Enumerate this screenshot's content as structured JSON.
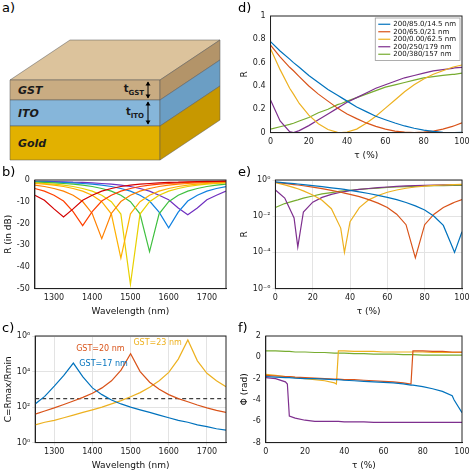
{
  "schematic": {
    "panel": "a)",
    "layers": [
      {
        "label": "GST",
        "thickness": {
          "symbol": "t",
          "subscript": "GST"
        }
      },
      {
        "label": "ITO",
        "thickness": {
          "symbol": "t",
          "subscript": "ITO"
        }
      },
      {
        "label": "Gold"
      }
    ]
  },
  "chart_data": [
    {
      "panel": "b)",
      "type": "line",
      "x_label": "Wavelength (nm)",
      "y_label": "R (in dB)",
      "x": [
        1250,
        1275,
        1300,
        1325,
        1350,
        1375,
        1400,
        1425,
        1450,
        1475,
        1500,
        1525,
        1550,
        1575,
        1600,
        1625,
        1650,
        1675,
        1700,
        1725,
        1750
      ],
      "xlim": [
        1250,
        1750
      ],
      "xticks": [
        1300,
        1400,
        1500,
        1600,
        1700
      ],
      "ylim": [
        -50,
        0
      ],
      "yticks": [
        -50,
        -40,
        -30,
        -20,
        -10,
        0
      ],
      "series": [
        {
          "color": "#d40000",
          "values": [
            -7.0,
            -9.3,
            -13.3,
            -17,
            -13.3,
            -9.3,
            -7.0,
            -5.1,
            -3.9,
            -3.0,
            -2.4,
            -1.9,
            -1.6,
            -1.3,
            -1.1,
            -1.0,
            -0.8,
            -0.7,
            -0.6,
            -0.6,
            -0.5
          ]
        },
        {
          "color": "#ff4000",
          "values": [
            -3.9,
            -5.1,
            -7.0,
            -9.7,
            -14.6,
            -21,
            -14.6,
            -9.7,
            -7.0,
            -5.1,
            -3.9,
            -3.0,
            -2.4,
            -1.9,
            -1.6,
            -1.3,
            -1.1,
            -1.0,
            -0.8,
            -0.7,
            -0.6
          ]
        },
        {
          "color": "#ff8000",
          "values": [
            -2.4,
            -3.0,
            -3.9,
            -5.1,
            -7.0,
            -9.9,
            -15.4,
            -27,
            -15.4,
            -9.9,
            -7.0,
            -5.1,
            -3.9,
            -3.0,
            -2.4,
            -1.9,
            -1.6,
            -1.3,
            -1.1,
            -1.0,
            -0.8
          ]
        },
        {
          "color": "#ffb000",
          "values": [
            -1.6,
            -1.9,
            -2.4,
            -3.0,
            -3.9,
            -5.1,
            -7.0,
            -10.0,
            -15.6,
            -36,
            -15.6,
            -10.0,
            -7.0,
            -5.1,
            -3.9,
            -3.0,
            -2.4,
            -1.9,
            -1.6,
            -1.3,
            -1.1
          ]
        },
        {
          "color": "#e8d000",
          "values": [
            -1.3,
            -1.6,
            -1.9,
            -2.4,
            -3.0,
            -3.9,
            -5.1,
            -7.0,
            -10.0,
            -15.7,
            -48,
            -15.7,
            -10.0,
            -7.0,
            -5.1,
            -3.9,
            -3.0,
            -2.4,
            -1.9,
            -1.6,
            -1.3
          ]
        },
        {
          "color": "#40c040",
          "values": [
            -1.0,
            -1.1,
            -1.3,
            -1.6,
            -1.9,
            -2.4,
            -3.0,
            -3.9,
            -5.1,
            -7.0,
            -10.0,
            -15.6,
            -33,
            -15.6,
            -10.0,
            -7.0,
            -5.1,
            -3.9,
            -3.0,
            -2.4,
            -1.9
          ]
        },
        {
          "color": "#1080e0",
          "values": [
            -0.7,
            -0.8,
            -1.0,
            -1.1,
            -1.3,
            -1.6,
            -1.9,
            -2.4,
            -3.0,
            -3.9,
            -5.1,
            -7.0,
            -9.7,
            -14.8,
            -22,
            -14.8,
            -9.7,
            -7.0,
            -5.1,
            -3.9,
            -3.0
          ]
        },
        {
          "color": "#7030c0",
          "values": [
            -0.6,
            -0.6,
            -0.7,
            -0.8,
            -1.0,
            -1.1,
            -1.3,
            -1.6,
            -1.9,
            -2.4,
            -3.0,
            -3.9,
            -5.1,
            -7.0,
            -9.1,
            -12.9,
            -16,
            -12.9,
            -9.1,
            -7.0,
            -5.1
          ]
        }
      ]
    },
    {
      "panel": "c)",
      "type": "line",
      "x_label": "Wavelength (nm)",
      "y_label": "C=Rmax/Rmin",
      "log": "y",
      "grid": true,
      "x": [
        1250,
        1275,
        1300,
        1325,
        1350,
        1375,
        1400,
        1425,
        1450,
        1475,
        1500,
        1525,
        1550,
        1575,
        1600,
        1625,
        1650,
        1675,
        1700,
        1725,
        1750
      ],
      "xlim": [
        1250,
        1750
      ],
      "xticks": [
        1300,
        1400,
        1500,
        1600,
        1700
      ],
      "ylim": [
        1,
        1000000
      ],
      "yticks": [
        {
          "value": 1,
          "label": "10⁰"
        },
        {
          "value": 100,
          "label": "10²"
        },
        {
          "value": 10000,
          "label": "10⁴"
        },
        {
          "value": 1000000,
          "label": "10⁶"
        }
      ],
      "series": [
        {
          "name": "GST=17 nm",
          "color": "#0072bd",
          "values": [
            150,
            400,
            1500,
            6000,
            30000,
            5000,
            1200,
            500,
            250,
            150,
            100,
            70,
            50,
            35,
            25,
            18,
            14,
            10,
            8,
            6,
            5
          ]
        },
        {
          "name": "GST=20 nm",
          "color": "#d95319",
          "values": [
            40,
            60,
            90,
            140,
            220,
            350,
            600,
            1200,
            3000,
            12000,
            100000,
            10000,
            2500,
            1000,
            500,
            300,
            200,
            130,
            90,
            65,
            50
          ]
        },
        {
          "name": "GST=23 nm",
          "color": "#edb120",
          "values": [
            10,
            14,
            18,
            25,
            35,
            50,
            70,
            100,
            150,
            230,
            380,
            650,
            1300,
            3000,
            9000,
            50000,
            600000,
            40000,
            8000,
            3000,
            1400
          ]
        },
        {
          "color": "#404040",
          "line_style": "dashed",
          "values": [
            300,
            300,
            300,
            300,
            300,
            300,
            300,
            300,
            300,
            300,
            300,
            300,
            300,
            300,
            300,
            300,
            300,
            300,
            300,
            300,
            300
          ]
        }
      ]
    },
    {
      "panel": "d)",
      "type": "line",
      "x_label": "τ (%)",
      "y_label": "R",
      "legend": "upper right",
      "x": [
        0,
        5,
        10,
        12,
        15,
        20,
        25,
        30,
        35,
        37,
        40,
        45,
        50,
        55,
        60,
        65,
        70,
        75,
        80,
        85,
        90,
        95,
        96,
        100
      ],
      "xlim": [
        0,
        100
      ],
      "xticks": [
        0,
        20,
        40,
        60,
        80,
        100
      ],
      "ylim": [
        0,
        1
      ],
      "yticks": [
        0,
        0.2,
        0.4,
        0.6,
        0.8,
        1
      ],
      "series": [
        {
          "name": "200/85.0/14.5 nm",
          "color": "#0072bd",
          "values": [
            0.78,
            0.7,
            0.63,
            0.6,
            0.56,
            0.49,
            0.43,
            0.37,
            0.32,
            0.3,
            0.27,
            0.22,
            0.18,
            0.14,
            0.11,
            0.082,
            0.057,
            0.037,
            0.022,
            0.01,
            0.0031,
            0.00018,
            0.0001,
            0.0014
          ]
        },
        {
          "name": "200/65.0/21 nm",
          "color": "#d95319",
          "values": [
            0.75,
            0.65,
            0.56,
            0.53,
            0.48,
            0.4,
            0.33,
            0.27,
            0.21,
            0.19,
            0.16,
            0.12,
            0.083,
            0.053,
            0.03,
            0.013,
            0.0034,
            5e-05,
            0.0034,
            0.013,
            0.03,
            0.053,
            0.059,
            0.083
          ]
        },
        {
          "name": "200/0.00/62.5 nm",
          "color": "#edb120",
          "values": [
            0.72,
            0.54,
            0.38,
            0.33,
            0.25,
            0.15,
            0.076,
            0.026,
            0.0022,
            0.0001,
            0.005,
            0.03,
            0.08,
            0.14,
            0.21,
            0.28,
            0.35,
            0.41,
            0.46,
            0.5,
            0.53,
            0.56,
            0.565,
            0.58
          ]
        },
        {
          "name": "200/250/179 nm",
          "color": "#7e2f8e",
          "values": [
            0.28,
            0.1,
            0.008,
            0.0002,
            0.017,
            0.06,
            0.11,
            0.16,
            0.21,
            0.23,
            0.26,
            0.3,
            0.34,
            0.38,
            0.41,
            0.44,
            0.47,
            0.49,
            0.51,
            0.53,
            0.54,
            0.55,
            0.555,
            0.56
          ]
        },
        {
          "name": "200/380/157 nm",
          "color": "#77ac30",
          "values": [
            0.03,
            0.05,
            0.07,
            0.08,
            0.1,
            0.13,
            0.17,
            0.2,
            0.24,
            0.25,
            0.27,
            0.3,
            0.33,
            0.36,
            0.39,
            0.41,
            0.43,
            0.45,
            0.47,
            0.48,
            0.49,
            0.5,
            0.5,
            0.51
          ]
        }
      ]
    },
    {
      "panel": "e)",
      "type": "line",
      "x_label": "τ (%)",
      "y_label": "R",
      "log": "y",
      "grid": true,
      "x": [
        0,
        5,
        10,
        12,
        15,
        20,
        25,
        30,
        35,
        37,
        40,
        45,
        50,
        55,
        60,
        65,
        70,
        75,
        80,
        85,
        90,
        95,
        96,
        100
      ],
      "xlim": [
        0,
        100
      ],
      "xticks": [
        0,
        20,
        40,
        60,
        80,
        100
      ],
      "ylim": [
        1e-06,
        1
      ],
      "yticks": [
        {
          "value": 1e-06,
          "label": "10⁻⁶"
        },
        {
          "value": 0.0001,
          "label": "10⁻⁴"
        },
        {
          "value": 0.01,
          "label": "10⁻²"
        },
        {
          "value": 1,
          "label": "10⁰"
        }
      ],
      "series": [
        {
          "color": "#0072bd",
          "values": [
            0.78,
            0.7,
            0.63,
            0.6,
            0.56,
            0.49,
            0.43,
            0.37,
            0.32,
            0.3,
            0.27,
            0.22,
            0.18,
            0.14,
            0.11,
            0.082,
            0.057,
            0.037,
            0.022,
            0.01,
            0.0031,
            0.00018,
            0.0001,
            0.0014
          ]
        },
        {
          "color": "#d95319",
          "values": [
            0.75,
            0.65,
            0.56,
            0.53,
            0.48,
            0.4,
            0.33,
            0.27,
            0.21,
            0.19,
            0.16,
            0.12,
            0.083,
            0.053,
            0.03,
            0.013,
            0.0034,
            5e-05,
            0.0034,
            0.013,
            0.03,
            0.053,
            0.059,
            0.083
          ]
        },
        {
          "color": "#edb120",
          "values": [
            0.72,
            0.54,
            0.38,
            0.33,
            0.25,
            0.15,
            0.076,
            0.026,
            0.0022,
            0.0001,
            0.005,
            0.03,
            0.08,
            0.14,
            0.21,
            0.28,
            0.35,
            0.41,
            0.46,
            0.5,
            0.53,
            0.56,
            0.565,
            0.58
          ]
        },
        {
          "color": "#7e2f8e",
          "values": [
            0.28,
            0.1,
            0.008,
            0.0002,
            0.017,
            0.06,
            0.11,
            0.16,
            0.21,
            0.23,
            0.26,
            0.3,
            0.34,
            0.38,
            0.41,
            0.44,
            0.47,
            0.49,
            0.51,
            0.53,
            0.54,
            0.55,
            0.555,
            0.56
          ]
        },
        {
          "color": "#77ac30",
          "values": [
            0.03,
            0.05,
            0.07,
            0.08,
            0.1,
            0.13,
            0.17,
            0.2,
            0.24,
            0.25,
            0.27,
            0.3,
            0.33,
            0.36,
            0.39,
            0.41,
            0.43,
            0.45,
            0.47,
            0.48,
            0.49,
            0.5,
            0.5,
            0.51
          ]
        }
      ]
    },
    {
      "panel": "f)",
      "type": "line",
      "x_label": "τ (%)",
      "y_label": "Φ (rad)",
      "x": [
        0,
        5,
        10,
        11,
        12,
        15,
        20,
        25,
        30,
        35,
        36,
        37,
        40,
        45,
        50,
        55,
        60,
        65,
        70,
        74,
        75,
        80,
        85,
        90,
        95,
        96,
        100
      ],
      "xlim": [
        0,
        100
      ],
      "xticks": [
        0,
        20,
        40,
        60,
        80,
        100
      ],
      "ylim": [
        -8,
        2
      ],
      "yticks": [
        -8,
        -6,
        -4,
        -2,
        0,
        2
      ],
      "series": [
        {
          "color": "#0072bd",
          "values": [
            -1.8,
            -1.85,
            -1.9,
            -1.9,
            -1.9,
            -1.95,
            -2.0,
            -2.0,
            -2.05,
            -2.1,
            -2.1,
            -2.1,
            -2.15,
            -2.2,
            -2.25,
            -2.3,
            -2.35,
            -2.4,
            -2.5,
            -2.6,
            -2.6,
            -2.75,
            -2.95,
            -3.2,
            -3.6,
            -4.0,
            -5.2
          ]
        },
        {
          "color": "#d95319",
          "values": [
            -1.7,
            -1.75,
            -1.8,
            -1.8,
            -1.8,
            -1.85,
            -1.9,
            -1.95,
            -2.0,
            -2.05,
            -2.05,
            -2.05,
            -2.1,
            -2.1,
            -2.15,
            -2.2,
            -2.25,
            -2.3,
            -2.4,
            -2.5,
            0.6,
            0.6,
            0.55,
            0.55,
            0.5,
            0.5,
            0.5
          ]
        },
        {
          "color": "#edb120",
          "values": [
            -1.6,
            -1.7,
            -1.8,
            -1.8,
            -1.8,
            -1.9,
            -2.0,
            -2.1,
            -2.2,
            -2.4,
            -2.5,
            0.6,
            0.6,
            0.55,
            0.55,
            0.55,
            0.5,
            0.5,
            0.5,
            0.5,
            0.5,
            0.5,
            0.45,
            0.45,
            0.45,
            0.45,
            0.45
          ]
        },
        {
          "color": "#7e2f8e",
          "values": [
            -1.9,
            -2.0,
            -2.3,
            -2.5,
            -5.5,
            -5.7,
            -5.9,
            -6.0,
            -6.0,
            -6.0,
            -6.0,
            -6.0,
            -6.05,
            -6.05,
            -6.05,
            -6.1,
            -6.1,
            -6.1,
            -6.1,
            -6.1,
            -6.1,
            -6.1,
            -6.1,
            -6.1,
            -6.1,
            -6.1,
            -6.1
          ]
        },
        {
          "color": "#77ac30",
          "values": [
            0.6,
            0.6,
            0.55,
            0.55,
            0.55,
            0.5,
            0.5,
            0.45,
            0.45,
            0.4,
            0.4,
            0.4,
            0.4,
            0.35,
            0.35,
            0.3,
            0.3,
            0.3,
            0.25,
            0.25,
            0.25,
            0.2,
            0.2,
            0.2,
            0.2,
            0.2,
            0.2
          ]
        }
      ]
    }
  ]
}
